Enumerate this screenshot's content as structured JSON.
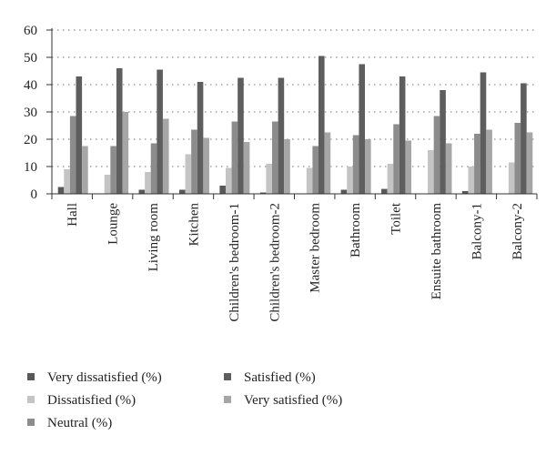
{
  "chart_data": {
    "type": "bar",
    "title": "",
    "xlabel": "",
    "ylabel": "",
    "ylim": [
      0,
      60
    ],
    "yticks": [
      0,
      10,
      20,
      30,
      40,
      50,
      60
    ],
    "grid": "horizontal-dotted",
    "legend_position": "bottom",
    "categories": [
      "Hall",
      "Lounge",
      "Living room",
      "Kitchen",
      "Children's bedroom-1",
      "Children's bedroom-2",
      "Master bedroom",
      "Bathroom",
      "Toilet",
      "Ensuite bathroom",
      "Balcony-1",
      "Balcony-2"
    ],
    "series": [
      {
        "name": "Very dissatisfied (%)",
        "color": "#585858",
        "values": [
          2.5,
          0,
          1.5,
          1.5,
          3,
          0.5,
          0,
          1.5,
          1.8,
          0,
          1,
          0
        ]
      },
      {
        "name": "Dissatisfied (%)",
        "color": "#c4c4c4",
        "values": [
          9,
          7,
          8,
          14.5,
          9.5,
          11,
          9.5,
          10,
          11,
          16,
          10,
          11.5
        ]
      },
      {
        "name": "Neutral (%)",
        "color": "#8c8c8c",
        "values": [
          28.5,
          17.5,
          18.5,
          23.5,
          26.5,
          26.5,
          17.5,
          21.5,
          25.5,
          28.5,
          22,
          26
        ]
      },
      {
        "name": "Satisfied (%)",
        "color": "#5e5e5e",
        "values": [
          43,
          46,
          45.5,
          41,
          42.5,
          42.5,
          50.5,
          47.5,
          43,
          38,
          44.5,
          40.5
        ]
      },
      {
        "name": "Very satisfied (%)",
        "color": "#a6a6a6",
        "values": [
          17.5,
          30,
          27.5,
          20.5,
          19,
          20,
          22.5,
          20,
          19.5,
          18.5,
          23.5,
          22.5
        ]
      }
    ]
  }
}
